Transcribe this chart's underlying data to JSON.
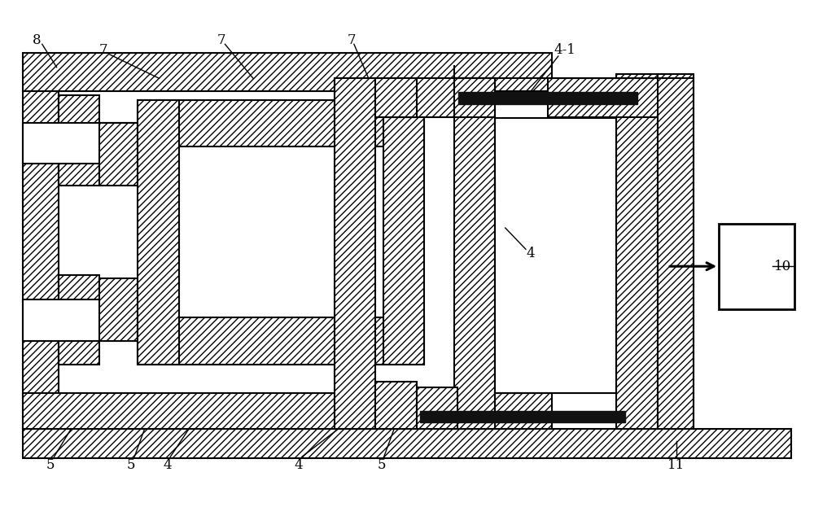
{
  "bg": "#ffffff",
  "lc": "#000000",
  "lw": 1.5,
  "lw_thick": 2.0,
  "hatch": "////",
  "fig_w": 10.0,
  "fig_h": 6.23,
  "label_fs": 12
}
